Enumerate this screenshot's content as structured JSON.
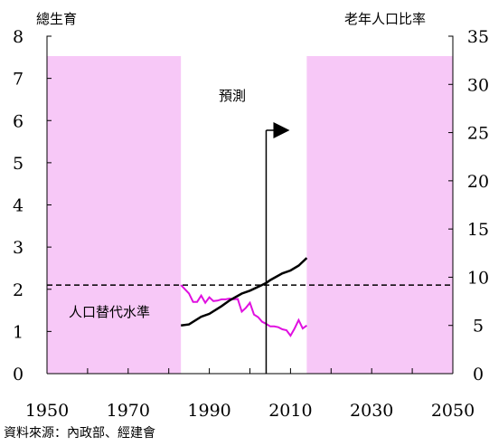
{
  "chart_data": {
    "type": "line",
    "left_axis_label": "總生育",
    "right_axis_label": "老年人口比率",
    "x_ticks": [
      1950,
      1970,
      1990,
      2010,
      2030,
      2050
    ],
    "y_left_ticks": [
      0,
      1,
      2,
      3,
      4,
      5,
      6,
      7,
      8
    ],
    "y_right_ticks": [
      0,
      5,
      10,
      15,
      20,
      25,
      30,
      35
    ],
    "xlim": [
      1950,
      2050
    ],
    "ylim_left": [
      0,
      8
    ],
    "ylim_right": [
      0,
      35
    ],
    "forecast_label": "預測",
    "forecast_year": 2004,
    "replacement_label": "人口替代水準",
    "replacement_level": 2.1,
    "shaded_periods": [
      {
        "start": 1950,
        "end": 1983,
        "color": "#f7c8f7"
      },
      {
        "start": 2014,
        "end": 2050,
        "color": "#f7c8f7"
      }
    ],
    "series": [
      {
        "axis": "left",
        "color": "#e010e0",
        "points": [
          [
            1983,
            2.1
          ],
          [
            1984,
            2.0
          ],
          [
            1985,
            1.9
          ],
          [
            1986,
            1.7
          ],
          [
            1987,
            1.7
          ],
          [
            1988,
            1.85
          ],
          [
            1989,
            1.68
          ],
          [
            1990,
            1.81
          ],
          [
            1991,
            1.72
          ],
          [
            1992,
            1.73
          ],
          [
            1993,
            1.76
          ],
          [
            1994,
            1.76
          ],
          [
            1995,
            1.78
          ],
          [
            1996,
            1.76
          ],
          [
            1997,
            1.77
          ],
          [
            1998,
            1.47
          ],
          [
            1999,
            1.56
          ],
          [
            2000,
            1.68
          ],
          [
            2001,
            1.4
          ],
          [
            2002,
            1.34
          ],
          [
            2003,
            1.23
          ],
          [
            2004,
            1.18
          ],
          [
            2005,
            1.12
          ],
          [
            2006,
            1.12
          ],
          [
            2007,
            1.1
          ],
          [
            2008,
            1.05
          ],
          [
            2009,
            1.03
          ],
          [
            2010,
            0.9
          ],
          [
            2011,
            1.07
          ],
          [
            2012,
            1.27
          ],
          [
            2013,
            1.07
          ],
          [
            2014,
            1.14
          ]
        ]
      },
      {
        "axis": "right",
        "color": "#000000",
        "points": [
          [
            1983,
            5.0
          ],
          [
            1985,
            5.1
          ],
          [
            1988,
            5.9
          ],
          [
            1990,
            6.2
          ],
          [
            1993,
            7.0
          ],
          [
            1995,
            7.6
          ],
          [
            1998,
            8.3
          ],
          [
            2000,
            8.6
          ],
          [
            2003,
            9.2
          ],
          [
            2004,
            9.4
          ],
          [
            2005,
            9.7
          ],
          [
            2008,
            10.4
          ],
          [
            2010,
            10.7
          ],
          [
            2012,
            11.2
          ],
          [
            2014,
            12.0
          ]
        ]
      }
    ]
  },
  "source_text": "資料來源：內政部、經建會"
}
